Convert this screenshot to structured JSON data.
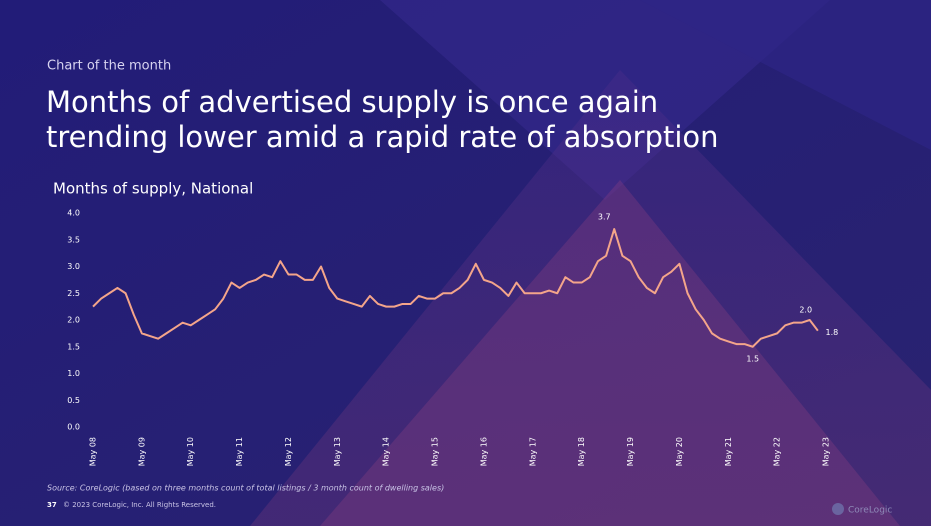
{
  "header": {
    "kicker": "Chart of the month",
    "title": [
      "Months of advertised supply is once again",
      "trending lower amid a rapid rate of absorption"
    ]
  },
  "chart_data": {
    "type": "line",
    "title": "Months of supply, National",
    "categories": [
      "May 08",
      null,
      null,
      null,
      null,
      null,
      "May 09",
      null,
      null,
      null,
      null,
      null,
      "May 10",
      null,
      null,
      null,
      null,
      null,
      "May 11",
      null,
      null,
      null,
      null,
      null,
      "May 12",
      null,
      null,
      null,
      null,
      null,
      "May 13",
      null,
      null,
      null,
      null,
      null,
      "May 14",
      null,
      null,
      null,
      null,
      null,
      "May 15",
      null,
      null,
      null,
      null,
      null,
      "May 16",
      null,
      null,
      null,
      null,
      null,
      "May 17",
      null,
      null,
      null,
      null,
      null,
      "May 18",
      null,
      null,
      null,
      null,
      null,
      "May 19",
      null,
      null,
      null,
      null,
      null,
      "May 20",
      null,
      null,
      null,
      null,
      null,
      "May 21",
      null,
      null,
      null,
      null,
      null,
      "May 22",
      null,
      null,
      null,
      null,
      null,
      "May 23"
    ],
    "series": [
      {
        "name": "Months of supply",
        "color": "#f4a58a",
        "values": [
          2.25,
          2.4,
          2.5,
          2.6,
          2.5,
          2.1,
          1.75,
          1.7,
          1.65,
          1.75,
          1.85,
          1.95,
          1.9,
          2.0,
          2.1,
          2.2,
          2.4,
          2.7,
          2.6,
          2.7,
          2.75,
          2.85,
          2.8,
          3.1,
          2.85,
          2.85,
          2.75,
          2.75,
          3.0,
          2.6,
          2.4,
          2.35,
          2.3,
          2.25,
          2.45,
          2.3,
          2.25,
          2.25,
          2.3,
          2.3,
          2.45,
          2.4,
          2.4,
          2.5,
          2.5,
          2.6,
          2.75,
          3.05,
          2.75,
          2.7,
          2.6,
          2.45,
          2.7,
          2.5,
          2.5,
          2.5,
          2.55,
          2.5,
          2.8,
          2.7,
          2.7,
          2.8,
          3.1,
          3.2,
          3.7,
          3.2,
          3.1,
          2.8,
          2.6,
          2.5,
          2.8,
          2.9,
          3.05,
          2.5,
          2.2,
          2.0,
          1.75,
          1.65,
          1.6,
          1.55,
          1.55,
          1.5,
          1.65,
          1.7,
          1.75,
          1.9,
          1.95,
          1.95,
          2.0,
          1.8,
          null
        ]
      }
    ],
    "annotations": [
      {
        "label": "3.7",
        "value": 3.7
      },
      {
        "label": "1.5",
        "value": 1.5
      },
      {
        "label": "2.0",
        "value": 2.0
      },
      {
        "label": "1.8",
        "value": 1.8
      }
    ],
    "ylim": [
      0,
      4
    ],
    "yticks": [
      {
        "value": 0,
        "label": "0.0"
      },
      0.5,
      {
        "value": 1,
        "label": "1.0"
      },
      1.5,
      {
        "value": 2,
        "label": "2.0"
      },
      2.5,
      {
        "value": 3,
        "label": "3.0"
      },
      3.5,
      {
        "value": 4,
        "label": "4.0"
      }
    ],
    "grid": false
  },
  "footer": {
    "source": "Source: CoreLogic  (based on three months count of total listings / 3 month count of dwelling sales)",
    "page": "37",
    "copyright": "© 2023 CoreLogic, Inc. All Rights Reserved.",
    "logo": "CoreLogic"
  }
}
